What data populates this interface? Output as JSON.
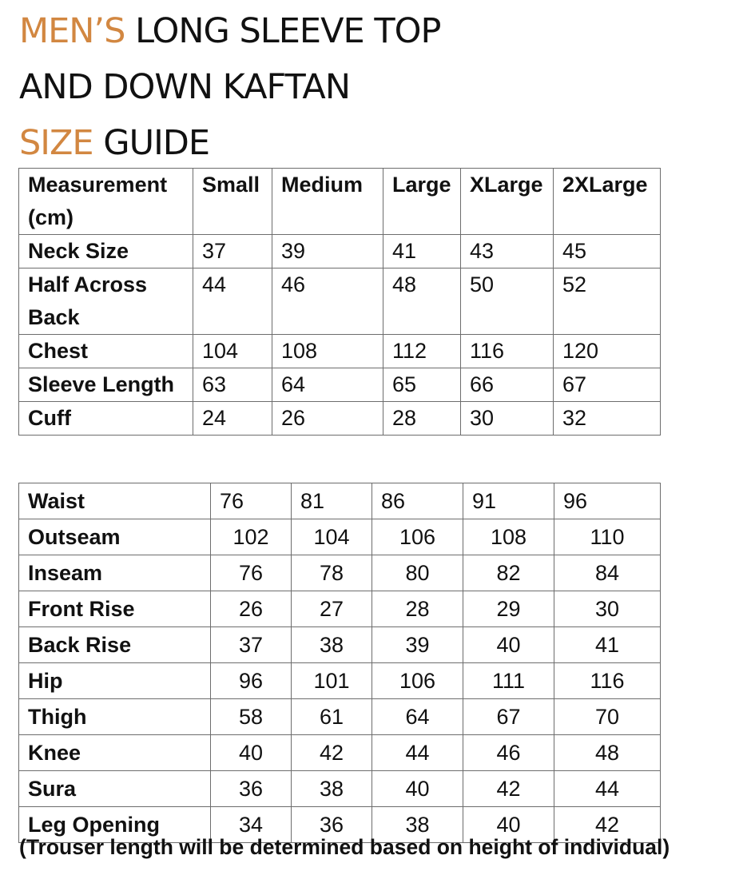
{
  "title": {
    "line1_accent": "MEN’S",
    "line1_rest": " LONG SLEEVE TOP",
    "line2": "AND DOWN KAFTAN",
    "line3_accent": "SIZE",
    "line3_rest": " GUIDE"
  },
  "colors": {
    "accent": "#d28741",
    "text": "#111111",
    "border": "#6d6d6d"
  },
  "top_table": {
    "headers": [
      "Measurement (cm)",
      "Small",
      "Medium",
      "Large",
      "XLarge",
      "2XLarge"
    ],
    "rows": [
      {
        "label": "Neck Size",
        "values": [
          "37",
          "39",
          "41",
          "43",
          "45"
        ]
      },
      {
        "label": "Half Across Back",
        "values": [
          "44",
          "46",
          "48",
          "50",
          "52"
        ]
      },
      {
        "label": "Chest",
        "values": [
          "104",
          "108",
          "112",
          "116",
          "120"
        ]
      },
      {
        "label": "Sleeve Length",
        "values": [
          "63",
          "64",
          "65",
          "66",
          "67"
        ]
      },
      {
        "label": "Cuff",
        "values": [
          "24",
          "26",
          "28",
          "30",
          "32"
        ]
      }
    ]
  },
  "bottom_table": {
    "rows": [
      {
        "label": "Waist",
        "values": [
          "76",
          "81",
          "86",
          "91",
          "96"
        ]
      },
      {
        "label": "Outseam",
        "values": [
          "102",
          "104",
          "106",
          "108",
          "110"
        ]
      },
      {
        "label": "Inseam",
        "values": [
          "76",
          "78",
          "80",
          "82",
          "84"
        ]
      },
      {
        "label": "Front Rise",
        "values": [
          "26",
          "27",
          "28",
          "29",
          "30"
        ]
      },
      {
        "label": "Back Rise",
        "values": [
          "37",
          "38",
          "39",
          "40",
          "41"
        ]
      },
      {
        "label": "Hip",
        "values": [
          "96",
          "101",
          "106",
          "111",
          "116"
        ]
      },
      {
        "label": "Thigh",
        "values": [
          "58",
          "61",
          "64",
          "67",
          "70"
        ]
      },
      {
        "label": "Knee",
        "values": [
          "40",
          "42",
          "44",
          "46",
          "48"
        ]
      },
      {
        "label": "Sura",
        "values": [
          "36",
          "38",
          "40",
          "42",
          "44"
        ]
      },
      {
        "label": "Leg Opening",
        "values": [
          "34",
          "36",
          "38",
          "40",
          "42"
        ]
      }
    ]
  },
  "note": "(Trouser length will be determined based on height of individual)"
}
